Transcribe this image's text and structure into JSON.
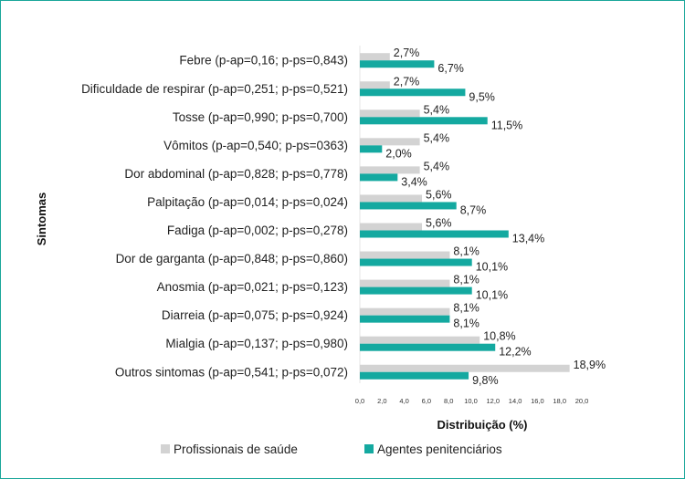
{
  "chart_data": {
    "type": "bar",
    "orientation": "horizontal",
    "ylabel": "Sintomas",
    "xlabel": "Distribuição (%)",
    "xlim": [
      0,
      20
    ],
    "xticks": [
      "0,0",
      "2,0",
      "4,0",
      "6,0",
      "8,0",
      "10,0",
      "12,0",
      "14,0",
      "16,0",
      "18,0",
      "20,0"
    ],
    "categories": [
      "Febre (p-ap=0,16; p-ps=0,843)",
      "Dificuldade de respirar (p-ap=0,251; p-ps=0,521)",
      "Tosse (p-ap=0,990; p-ps=0,700)",
      "Vômitos (p-ap=0,540; p-ps=0363)",
      "Dor abdominal (p-ap=0,828; p-ps=0,778)",
      "Palpitação (p-ap=0,014; p-ps=0,024)",
      "Fadiga (p-ap=0,002; p-ps=0,278)",
      "Dor de garganta (p-ap=0,848; p-ps=0,860)",
      "Anosmia (p-ap=0,021; p-ps=0,123)",
      "Diarreia (p-ap=0,075; p-ps=0,924)",
      "Mialgia (p-ap=0,137; p-ps=0,980)",
      "Outros sintomas (p-ap=0,541; p-ps=0,072)"
    ],
    "series": [
      {
        "name": "Profissionais de saúde",
        "color": "#d3d3d3",
        "values": [
          2.7,
          2.7,
          5.4,
          5.4,
          5.4,
          5.6,
          5.6,
          8.1,
          8.1,
          8.1,
          10.8,
          18.9
        ],
        "labels": [
          "2,7%",
          "2,7%",
          "5,4%",
          "5,4%",
          "5,4%",
          "5,6%",
          "5,6%",
          "8,1%",
          "8,1%",
          "8,1%",
          "10,8%",
          "18,9%"
        ]
      },
      {
        "name": "Agentes penitenciários",
        "color": "#14a9a0",
        "values": [
          6.7,
          9.5,
          11.5,
          2.0,
          3.4,
          8.7,
          13.4,
          10.1,
          10.1,
          8.1,
          12.2,
          9.8
        ],
        "labels": [
          "6,7%",
          "9,5%",
          "11,5%",
          "2,0%",
          "3,4%",
          "8,7%",
          "13,4%",
          "10,1%",
          "10,1%",
          "8,1%",
          "12,2%",
          "9,8%"
        ]
      }
    ],
    "grid": false,
    "legend_position": "bottom"
  }
}
